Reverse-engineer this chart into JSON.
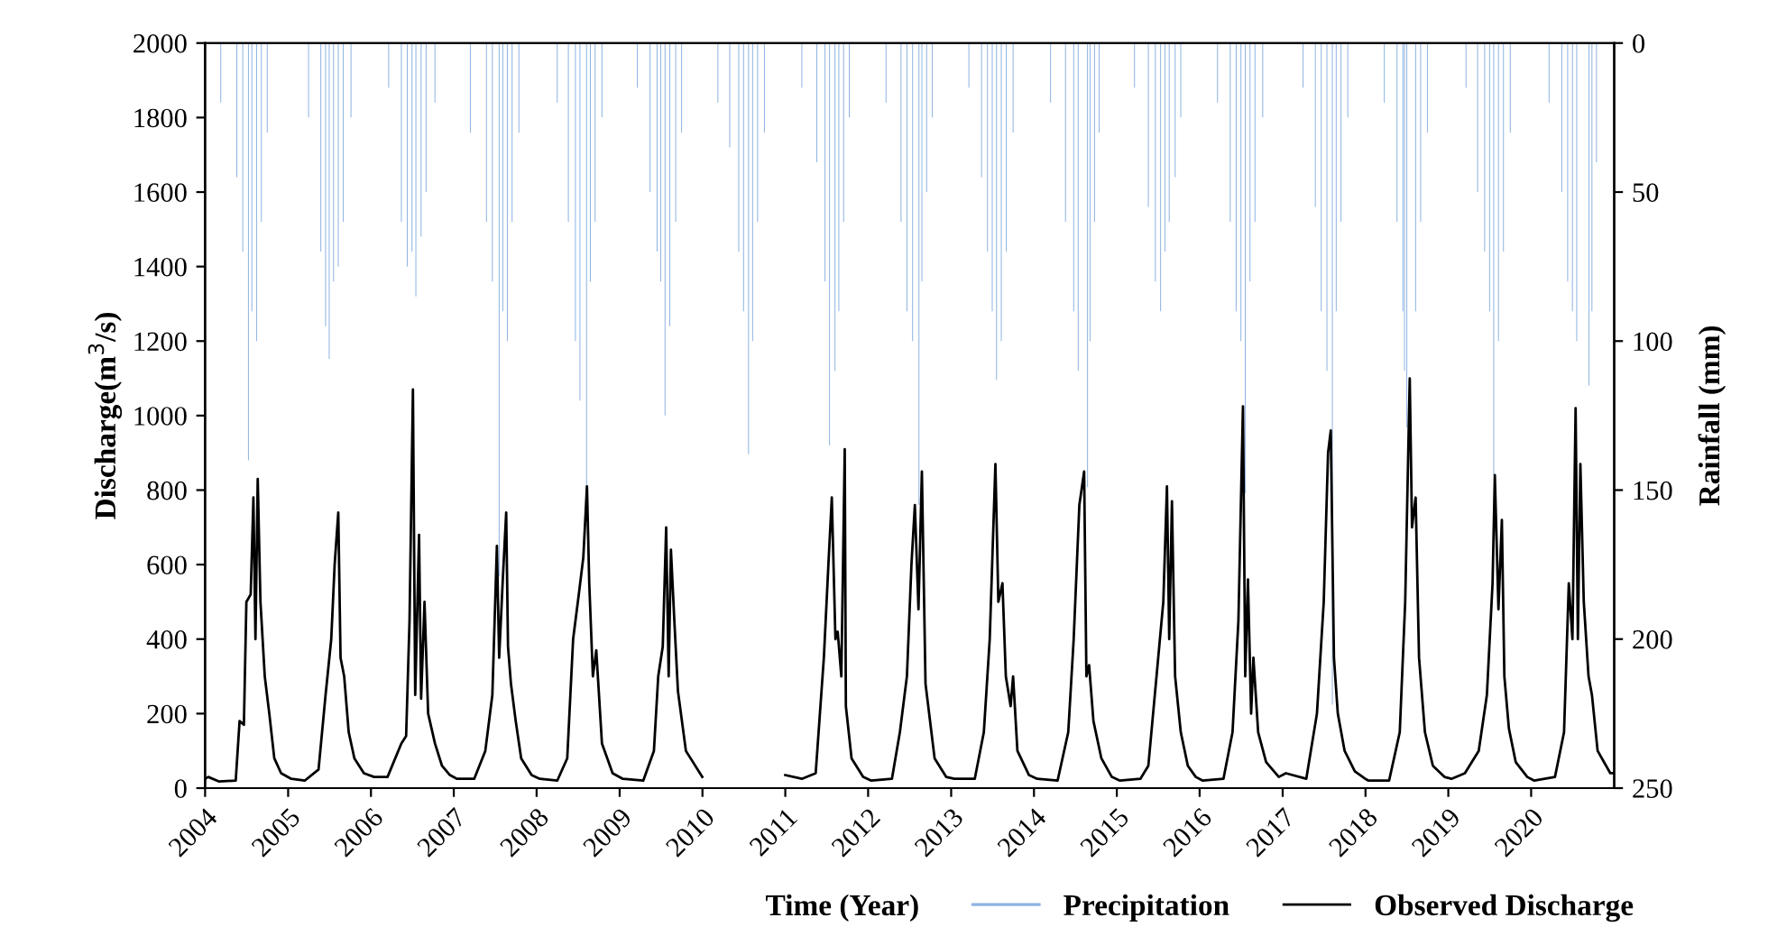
{
  "chart_data": {
    "type": "line",
    "xlabel": "Time (Year)",
    "ylabel": "Discharge(m$^{3}$/s)",
    "y2label": "Rainfall (mm)",
    "xlim": [
      "2004-01-01",
      "2021-01-01"
    ],
    "xticks": [
      "2004",
      "2005",
      "2006",
      "2007",
      "2008",
      "2009",
      "2010",
      "2011",
      "2012",
      "2013",
      "2014",
      "2015",
      "2016",
      "2017",
      "2018",
      "2019",
      "2020"
    ],
    "ylim": [
      0,
      2000
    ],
    "yticks": [
      0,
      200,
      400,
      600,
      800,
      1000,
      1200,
      1400,
      1600,
      1800,
      2000
    ],
    "y2lim": [
      250,
      0
    ],
    "y2ticks": [
      0,
      50,
      100,
      150,
      200,
      250
    ],
    "grid": false,
    "legend": "bottom",
    "line_style": "solid",
    "marker": "none",
    "series": [
      {
        "name": "Precipitation",
        "type": "bar",
        "axis": "y2",
        "color": "#8db3e2",
        "x": [
          "2004-03-10",
          "2004-05-20",
          "2004-06-15",
          "2004-07-10",
          "2004-07-25",
          "2004-08-15",
          "2004-09-05",
          "2004-10-01",
          "2005-04-01",
          "2005-05-25",
          "2005-06-15",
          "2005-07-01",
          "2005-07-20",
          "2005-08-10",
          "2005-09-01",
          "2005-10-05",
          "2006-03-20",
          "2006-05-15",
          "2006-06-10",
          "2006-07-01",
          "2006-07-18",
          "2006-08-10",
          "2006-09-01",
          "2006-10-10",
          "2007-03-15",
          "2007-05-25",
          "2007-06-20",
          "2007-07-20",
          "2007-08-05",
          "2007-08-25",
          "2007-09-15",
          "2007-10-15",
          "2008-04-01",
          "2008-05-20",
          "2008-06-20",
          "2008-07-10",
          "2008-08-08",
          "2008-08-25",
          "2008-09-15",
          "2008-10-15",
          "2009-03-20",
          "2009-05-15",
          "2009-06-15",
          "2009-07-01",
          "2009-07-20",
          "2009-08-10",
          "2009-09-05",
          "2009-10-01",
          "2010-03-10",
          "2010-05-01",
          "2010-06-10",
          "2010-07-01",
          "2010-07-23",
          "2010-08-10",
          "2010-09-01",
          "2010-10-01",
          "2011-03-15",
          "2011-05-20",
          "2011-06-25",
          "2011-07-15",
          "2011-08-08",
          "2011-08-25",
          "2011-09-15",
          "2011-10-10",
          "2012-03-20",
          "2012-05-25",
          "2012-06-20",
          "2012-07-15",
          "2012-08-12",
          "2012-08-25",
          "2012-09-15",
          "2012-10-10",
          "2013-03-20",
          "2013-05-15",
          "2013-06-10",
          "2013-07-01",
          "2013-07-20",
          "2013-08-10",
          "2013-09-01",
          "2013-10-01",
          "2014-03-15",
          "2014-05-20",
          "2014-06-25",
          "2014-07-15",
          "2014-08-25",
          "2014-09-05",
          "2014-09-25",
          "2014-10-15",
          "2015-03-20",
          "2015-05-20",
          "2015-06-20",
          "2015-07-13",
          "2015-08-01",
          "2015-08-20",
          "2015-09-15",
          "2015-10-10",
          "2016-03-20",
          "2016-05-15",
          "2016-06-10",
          "2016-07-01",
          "2016-07-20",
          "2016-08-10",
          "2016-09-01",
          "2016-10-05",
          "2017-04-01",
          "2017-05-25",
          "2017-06-20",
          "2017-07-15",
          "2017-08-08",
          "2017-08-25",
          "2017-09-15",
          "2017-10-15",
          "2018-03-25",
          "2018-05-20",
          "2018-06-15",
          "2018-06-22",
          "2018-07-02",
          "2018-08-10",
          "2018-09-01",
          "2018-10-01",
          "2019-03-20",
          "2019-05-10",
          "2019-06-10",
          "2019-07-02",
          "2019-07-20",
          "2019-08-10",
          "2019-09-01",
          "2019-10-01",
          "2020-03-20",
          "2020-05-15",
          "2020-06-10",
          "2020-07-01",
          "2020-07-20",
          "2020-09-12",
          "2020-09-25",
          "2020-10-15"
        ],
        "values": [
          20,
          45,
          70,
          140,
          90,
          100,
          60,
          30,
          25,
          70,
          95,
          106,
          80,
          75,
          60,
          25,
          15,
          60,
          75,
          70,
          85,
          65,
          50,
          20,
          30,
          60,
          80,
          179,
          90,
          100,
          60,
          30,
          20,
          60,
          100,
          120,
          150,
          80,
          60,
          25,
          15,
          50,
          70,
          80,
          125,
          95,
          60,
          30,
          20,
          35,
          70,
          90,
          138,
          100,
          60,
          30,
          15,
          40,
          80,
          135,
          110,
          90,
          60,
          25,
          20,
          60,
          90,
          100,
          155,
          80,
          50,
          25,
          15,
          45,
          70,
          90,
          113,
          100,
          70,
          30,
          20,
          60,
          90,
          110,
          149,
          100,
          60,
          30,
          15,
          55,
          80,
          90,
          70,
          60,
          45,
          25,
          20,
          60,
          90,
          100,
          151,
          80,
          60,
          25,
          15,
          55,
          90,
          110,
          222,
          90,
          60,
          25,
          20,
          60,
          90,
          110,
          129,
          90,
          60,
          30,
          15,
          50,
          70,
          90,
          145,
          100,
          70,
          30,
          20,
          50,
          80,
          90,
          100,
          115,
          90,
          40
        ]
      },
      {
        "name": "Observed Discharge",
        "color": "#000000",
        "x": [
          "2004-01-01",
          "2004-01-15",
          "2004-03-01",
          "2004-05-15",
          "2004-06-01",
          "2004-06-20",
          "2004-07-01",
          "2004-07-20",
          "2004-08-01",
          "2004-08-10",
          "2004-08-20",
          "2004-09-01",
          "2004-09-20",
          "2004-10-10",
          "2004-11-01",
          "2004-12-01",
          "2005-01-15",
          "2005-03-15",
          "2005-05-15",
          "2005-06-15",
          "2005-07-10",
          "2005-07-25",
          "2005-08-10",
          "2005-08-20",
          "2005-09-05",
          "2005-09-25",
          "2005-10-20",
          "2005-12-01",
          "2006-01-15",
          "2006-03-15",
          "2006-05-15",
          "2006-06-05",
          "2006-06-20",
          "2006-07-05",
          "2006-07-15",
          "2006-08-01",
          "2006-08-10",
          "2006-08-25",
          "2006-09-10",
          "2006-10-10",
          "2006-11-10",
          "2006-12-15",
          "2007-01-15",
          "2007-04-01",
          "2007-05-20",
          "2007-06-20",
          "2007-07-10",
          "2007-07-20",
          "2007-08-05",
          "2007-08-20",
          "2007-08-28",
          "2007-09-10",
          "2007-10-01",
          "2007-10-25",
          "2007-12-10",
          "2008-01-15",
          "2008-04-01",
          "2008-05-15",
          "2008-06-10",
          "2008-07-05",
          "2008-07-25",
          "2008-08-10",
          "2008-08-20",
          "2008-09-05",
          "2008-09-20",
          "2008-10-15",
          "2008-12-01",
          "2009-01-15",
          "2009-04-15",
          "2009-06-01",
          "2009-06-20",
          "2009-07-10",
          "2009-07-25",
          "2009-08-05",
          "2009-08-15",
          "2009-08-30",
          "2009-09-15",
          "2009-10-20",
          "2009-12-31",
          "2010-06-01",
          "2011-01-01",
          "2011-03-15",
          "2011-05-15",
          "2011-06-20",
          "2011-07-10",
          "2011-07-25",
          "2011-08-10",
          "2011-08-20",
          "2011-09-05",
          "2011-09-20",
          "2011-09-25",
          "2011-10-20",
          "2011-12-10",
          "2012-01-15",
          "2012-04-15",
          "2012-05-20",
          "2012-06-20",
          "2012-07-10",
          "2012-07-25",
          "2012-08-10",
          "2012-08-25",
          "2012-09-10",
          "2012-10-20",
          "2012-12-10",
          "2013-01-15",
          "2013-04-15",
          "2013-05-25",
          "2013-06-20",
          "2013-07-15",
          "2013-07-28",
          "2013-08-15",
          "2013-08-30",
          "2013-09-20",
          "2013-10-01",
          "2013-10-20",
          "2013-12-10",
          "2014-01-15",
          "2014-04-15",
          "2014-06-01",
          "2014-06-25",
          "2014-07-20",
          "2014-08-10",
          "2014-08-20",
          "2014-09-01",
          "2014-09-20",
          "2014-10-25",
          "2014-12-10",
          "2015-01-15",
          "2015-04-15",
          "2015-05-20",
          "2015-06-25",
          "2015-07-25",
          "2015-08-10",
          "2015-08-20",
          "2015-09-01",
          "2015-09-15",
          "2015-10-10",
          "2015-11-10",
          "2015-12-15",
          "2016-01-15",
          "2016-04-15",
          "2016-05-25",
          "2016-06-20",
          "2016-07-10",
          "2016-07-20",
          "2016-08-01",
          "2016-08-15",
          "2016-08-25",
          "2016-09-15",
          "2016-10-20",
          "2016-12-15",
          "2017-01-15",
          "2017-04-15",
          "2017-06-01",
          "2017-07-01",
          "2017-07-20",
          "2017-08-01",
          "2017-08-15",
          "2017-09-01",
          "2017-10-01",
          "2017-11-15",
          "2017-12-31",
          "2018-01-15",
          "2018-04-15",
          "2018-06-01",
          "2018-06-25",
          "2018-07-15",
          "2018-07-25",
          "2018-08-10",
          "2018-08-25",
          "2018-09-20",
          "2018-10-25",
          "2018-12-15",
          "2019-01-15",
          "2019-03-15",
          "2019-05-15",
          "2019-06-20",
          "2019-07-15",
          "2019-07-25",
          "2019-08-10",
          "2019-08-25",
          "2019-09-05",
          "2019-09-25",
          "2019-10-25",
          "2019-12-15",
          "2020-01-15",
          "2020-04-15",
          "2020-05-25",
          "2020-06-15",
          "2020-07-01",
          "2020-07-15",
          "2020-07-25",
          "2020-08-05",
          "2020-08-20",
          "2020-09-10",
          "2020-09-25",
          "2020-10-20",
          "2020-12-15",
          "2020-12-31"
        ],
        "values": [
          25,
          30,
          18,
          20,
          180,
          170,
          500,
          520,
          780,
          400,
          830,
          500,
          300,
          200,
          80,
          40,
          25,
          20,
          50,
          250,
          400,
          600,
          740,
          350,
          300,
          150,
          80,
          40,
          30,
          30,
          120,
          140,
          450,
          1070,
          250,
          680,
          240,
          500,
          200,
          120,
          60,
          35,
          25,
          25,
          100,
          250,
          650,
          350,
          560,
          740,
          380,
          280,
          180,
          80,
          35,
          25,
          20,
          80,
          400,
          520,
          620,
          810,
          550,
          300,
          370,
          120,
          40,
          25,
          20,
          100,
          300,
          380,
          700,
          300,
          640,
          450,
          260,
          100,
          30,
          null,
          35,
          25,
          40,
          350,
          600,
          780,
          400,
          420,
          300,
          910,
          220,
          80,
          30,
          20,
          25,
          150,
          300,
          600,
          760,
          480,
          850,
          280,
          80,
          30,
          25,
          25,
          150,
          400,
          870,
          500,
          550,
          300,
          220,
          300,
          100,
          35,
          25,
          20,
          150,
          400,
          760,
          850,
          300,
          330,
          180,
          80,
          30,
          20,
          25,
          60,
          300,
          500,
          810,
          400,
          770,
          300,
          150,
          60,
          30,
          20,
          25,
          150,
          450,
          1025,
          300,
          560,
          200,
          350,
          150,
          70,
          30,
          40,
          25,
          200,
          500,
          900,
          960,
          350,
          200,
          100,
          45,
          25,
          20,
          20,
          150,
          500,
          1100,
          700,
          780,
          350,
          150,
          60,
          30,
          25,
          40,
          100,
          250,
          550,
          840,
          480,
          720,
          300,
          160,
          70,
          30,
          20,
          30,
          150,
          550,
          400,
          1020,
          400,
          870,
          500,
          300,
          250,
          100,
          40,
          40
        ]
      }
    ]
  }
}
